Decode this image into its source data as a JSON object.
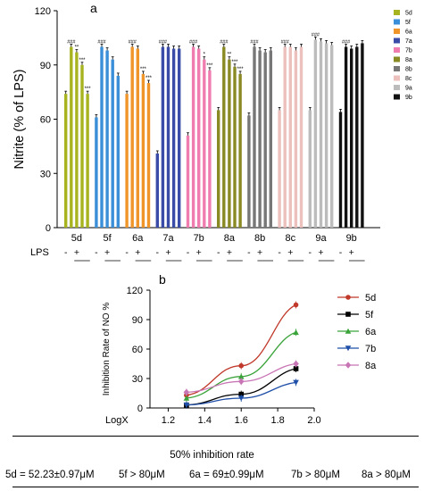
{
  "chart_data": [
    {
      "type": "bar",
      "panel_label": "a",
      "ylabel": "Nitrite (% of LPS)",
      "ylim": [
        0,
        120
      ],
      "yticks": [
        0,
        30,
        60,
        90,
        120
      ],
      "lps_label": "LPS",
      "groups": [
        "5d",
        "5f",
        "6a",
        "7a",
        "7b",
        "8a",
        "8b",
        "8c",
        "9a",
        "9b"
      ],
      "colors": {
        "5d": "#a8b320",
        "5f": "#3a8fd8",
        "6a": "#f0952a",
        "7a": "#3b4ca8",
        "7b": "#f07db0",
        "8a": "#8a8a24",
        "8b": "#777777",
        "8c": "#ecc0bc",
        "9a": "#bcbcbc",
        "9b": "#111111"
      },
      "lps_pattern": [
        "-",
        "-",
        "+",
        "+",
        "+"
      ],
      "values": {
        "5d": [
          74,
          100,
          97,
          90,
          74
        ],
        "5f": [
          61,
          100,
          98,
          93,
          84
        ],
        "6a": [
          74,
          100,
          99,
          85,
          80
        ],
        "7a": [
          41,
          100,
          100,
          99,
          99
        ],
        "7b": [
          51,
          100,
          99,
          93,
          87
        ],
        "8a": [
          65,
          100,
          93,
          89,
          85
        ],
        "8b": [
          62,
          100,
          98,
          97,
          98
        ],
        "8c": [
          65,
          100,
          100,
          98,
          100
        ],
        "9a": [
          65,
          104,
          103,
          102,
          101
        ],
        "9b": [
          64,
          100,
          99,
          100,
          102
        ]
      },
      "annotations": {
        "5d": [
          "###",
          "**",
          "***",
          "***"
        ],
        "5f": [
          "###",
          "",
          "",
          ""
        ],
        "6a": [
          "###",
          "",
          "***",
          "***"
        ],
        "7a": [
          "###",
          "",
          "",
          ""
        ],
        "7b": [
          "###",
          "",
          "*",
          "***"
        ],
        "8a": [
          "###",
          "**",
          "***",
          "***"
        ],
        "8b": [
          "###",
          "",
          "",
          ""
        ],
        "8c": [
          "###",
          "",
          "",
          ""
        ],
        "9a": [
          "###",
          "",
          "",
          ""
        ],
        "9b": [
          "###",
          "",
          "",
          ""
        ]
      },
      "legend": [
        "5d",
        "5f",
        "6a",
        "7a",
        "7b",
        "8a",
        "8b",
        "8c",
        "9a",
        "9b"
      ]
    },
    {
      "type": "line",
      "panel_label": "b",
      "ylabel": "Inhibition Rate of NO %",
      "xlabel": "LogX",
      "xlim": [
        1.1,
        2.0
      ],
      "ylim": [
        0,
        120
      ],
      "xticks": [
        "1.2",
        "1.4",
        "1.6",
        "1.8",
        "2.0"
      ],
      "yticks": [
        0,
        30,
        60,
        90,
        120
      ],
      "x": [
        1.3,
        1.6,
        1.9
      ],
      "series": [
        {
          "name": "5d",
          "color": "#c0392b",
          "marker": "circle",
          "values": [
            13,
            43,
            105
          ]
        },
        {
          "name": "5f",
          "color": "#000000",
          "marker": "square",
          "values": [
            3,
            14,
            40
          ]
        },
        {
          "name": "6a",
          "color": "#3aa33a",
          "marker": "triangle",
          "values": [
            10,
            32,
            77
          ]
        },
        {
          "name": "7b",
          "color": "#1f4fa8",
          "marker": "triangle-down",
          "values": [
            3,
            10,
            26
          ]
        },
        {
          "name": "8a",
          "color": "#c875b5",
          "marker": "diamond",
          "values": [
            16,
            27,
            45
          ]
        }
      ]
    }
  ],
  "table": {
    "title": "50% inhibition rate",
    "cells": [
      "5d = 52.23±0.97μM",
      "5f > 80μM",
      "6a = 69±0.99μM",
      "7b > 80μM",
      "8a > 80μM"
    ]
  }
}
